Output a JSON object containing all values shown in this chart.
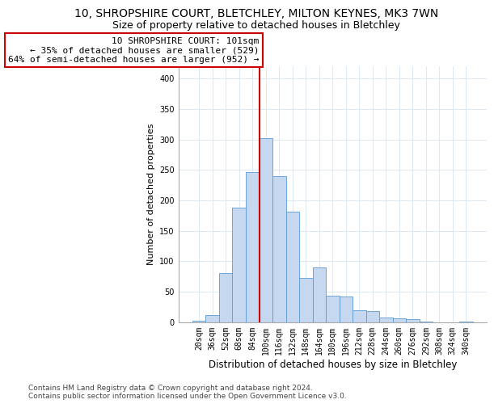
{
  "title1": "10, SHROPSHIRE COURT, BLETCHLEY, MILTON KEYNES, MK3 7WN",
  "title2": "Size of property relative to detached houses in Bletchley",
  "xlabel": "Distribution of detached houses by size in Bletchley",
  "ylabel": "Number of detached properties",
  "bin_labels": [
    "20sqm",
    "36sqm",
    "52sqm",
    "68sqm",
    "84sqm",
    "100sqm",
    "116sqm",
    "132sqm",
    "148sqm",
    "164sqm",
    "180sqm",
    "196sqm",
    "212sqm",
    "228sqm",
    "244sqm",
    "260sqm",
    "276sqm",
    "292sqm",
    "308sqm",
    "324sqm",
    "340sqm"
  ],
  "bar_heights": [
    3,
    12,
    80,
    188,
    246,
    302,
    240,
    181,
    73,
    90,
    44,
    42,
    20,
    19,
    8,
    6,
    5,
    1,
    0,
    0,
    1
  ],
  "bar_color": "#c5d8f0",
  "bar_edge_color": "#5b9bd5",
  "vline_bin_index": 5,
  "vline_color": "#cc0000",
  "annotation_line1": "10 SHROPSHIRE COURT: 101sqm",
  "annotation_line2": "← 35% of detached houses are smaller (529)",
  "annotation_line3": "64% of semi-detached houses are larger (952) →",
  "annotation_box_color": "#ffffff",
  "annotation_box_edge": "#cc0000",
  "ylim": [
    0,
    420
  ],
  "yticks": [
    0,
    50,
    100,
    150,
    200,
    250,
    300,
    350,
    400
  ],
  "grid_color": "#d8e4f0",
  "footnote": "Contains HM Land Registry data © Crown copyright and database right 2024.\nContains public sector information licensed under the Open Government Licence v3.0.",
  "title1_fontsize": 10,
  "title2_fontsize": 9,
  "xlabel_fontsize": 8.5,
  "ylabel_fontsize": 8,
  "tick_fontsize": 7,
  "annotation_fontsize": 8,
  "footnote_fontsize": 6.5
}
